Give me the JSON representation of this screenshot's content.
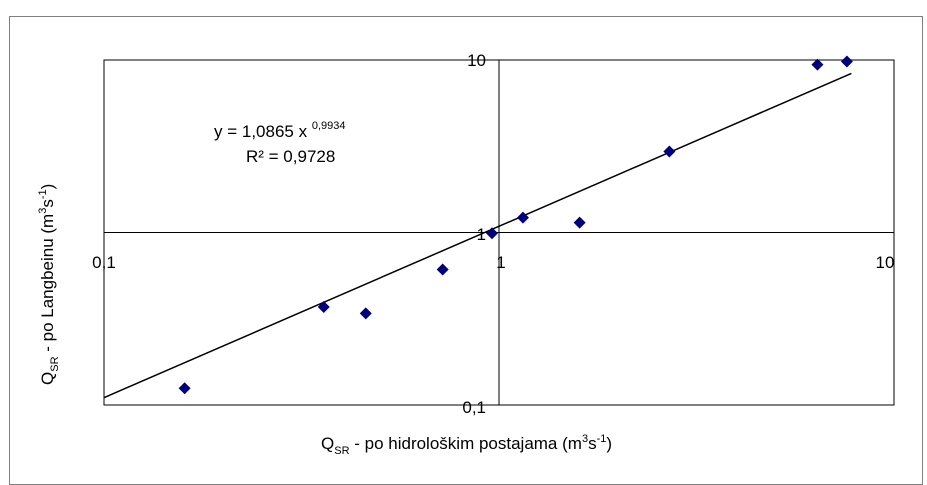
{
  "chart_data": {
    "type": "scatter",
    "title": "",
    "xlabel": {
      "main": "Q",
      "sub": "SR",
      "rest": " - po hidrološkim  postajama  (m",
      "unit_sup1": "3",
      "mid": "s",
      "unit_sup2": "-1",
      "end": ")"
    },
    "ylabel": {
      "main": "Q",
      "sub": "SR",
      "rest": " - po Langbeinu   (m",
      "unit_sup1": "3",
      "mid": "s",
      "unit_sup2": "-1",
      "end": ")"
    },
    "x_scale": "log",
    "y_scale": "log",
    "xlim": [
      0.1,
      10
    ],
    "ylim": [
      0.1,
      10
    ],
    "x_ticks": [
      "0,1",
      "1",
      "10"
    ],
    "y_ticks": [
      "0,1",
      "1",
      "10"
    ],
    "grid": true,
    "legend": "none",
    "marker_color": "#00007f",
    "trend_color": "#000000",
    "series": [
      {
        "x": [
          0.16,
          0.36,
          0.46,
          0.72,
          0.96,
          1.15,
          1.6,
          2.7,
          6.4,
          7.6
        ],
        "y": [
          0.125,
          0.37,
          0.34,
          0.61,
          0.99,
          1.22,
          1.14,
          2.95,
          9.4,
          9.8
        ]
      }
    ],
    "trendline": {
      "type": "power",
      "a": 1.0865,
      "b": 0.9934,
      "x_range": [
        0.1,
        7.8
      ]
    },
    "annotations": {
      "equation_base": "y = 1,0865 x ",
      "equation_exp": "0,9934",
      "r2": "R² = 0,9728"
    }
  }
}
